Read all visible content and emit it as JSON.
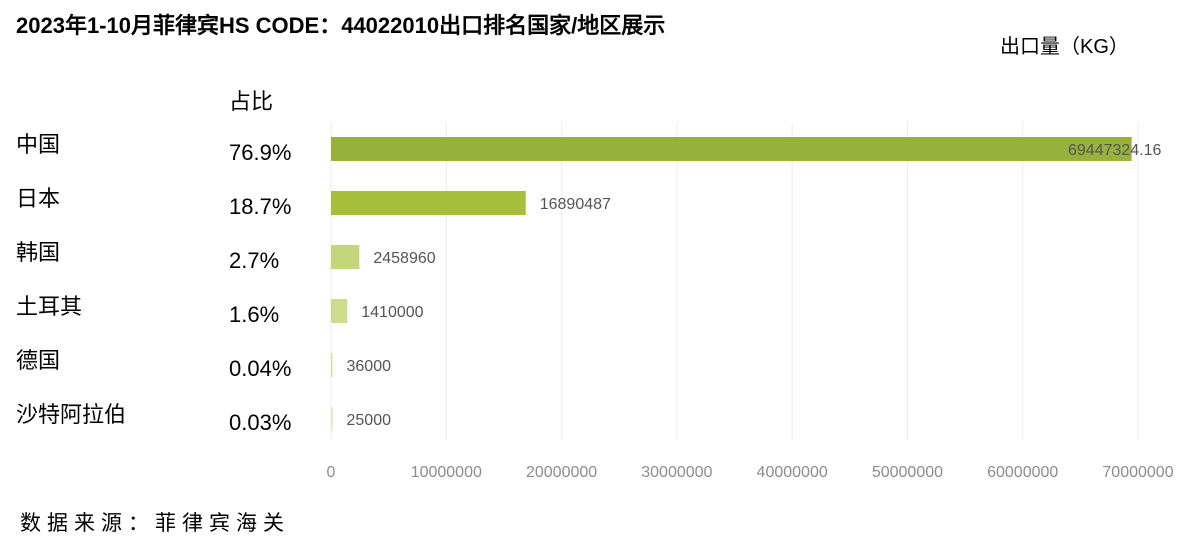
{
  "title": "2023年1-10月菲律宾HS CODE：44022010出口排名国家/地区展示",
  "unit_label": "出口量（KG）",
  "share_header": "占比",
  "source": "数据来源：菲律宾海关",
  "chart_data": {
    "type": "bar",
    "orientation": "horizontal",
    "categories": [
      "中国",
      "日本",
      "韩国",
      "土耳其",
      "德国",
      "沙特阿拉伯"
    ],
    "values": [
      69447324.16,
      16890487,
      2458960,
      1410000,
      36000,
      25000
    ],
    "value_labels": [
      "69447324.16",
      "16890487",
      "2458960",
      "1410000",
      "36000",
      "25000"
    ],
    "shares": [
      "76.9%",
      "18.7%",
      "2.7%",
      "1.6%",
      "0.04%",
      "0.03%"
    ],
    "bar_colors": [
      "#97b13a",
      "#a5bf3b",
      "#c4d67b",
      "#cbdc8b",
      "#d3e19b",
      "#dde8b3"
    ],
    "xlim": [
      0,
      70000000
    ],
    "xticks": [
      "0",
      "10000000",
      "20000000",
      "30000000",
      "40000000",
      "50000000",
      "60000000",
      "70000000"
    ],
    "grid": true,
    "legend": "none"
  }
}
